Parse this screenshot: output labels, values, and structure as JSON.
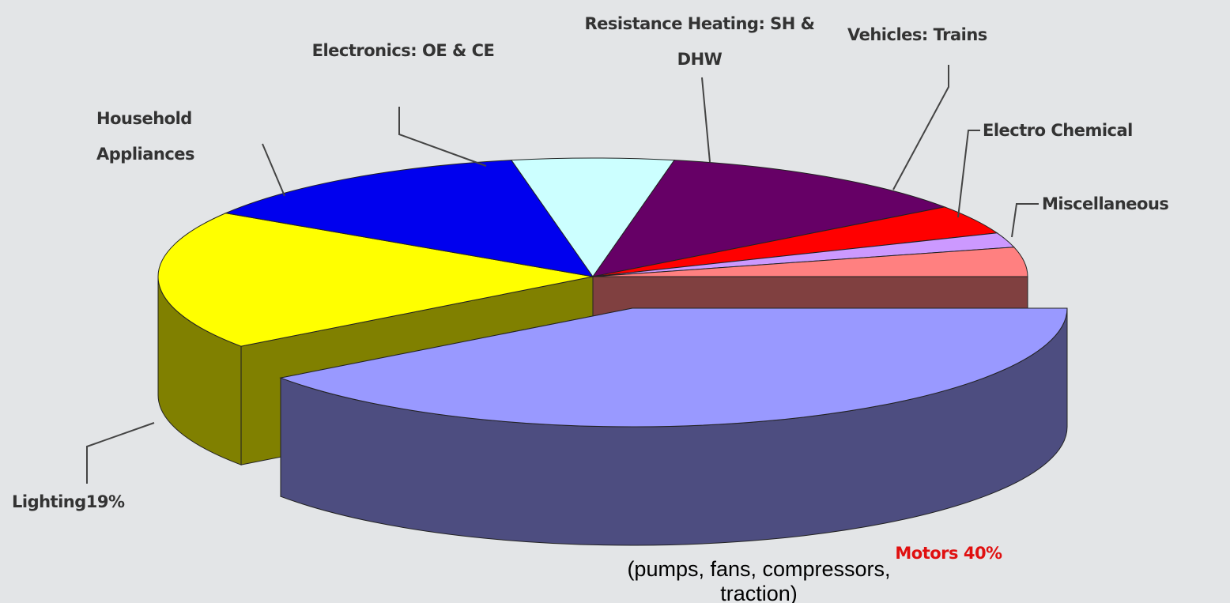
{
  "chart_data": {
    "type": "pie",
    "categories": [
      "Motors 40%",
      "Lighting19%",
      "Household Appliances",
      "Electronics: OE & CE",
      "Resistance Heating: SH & DHW",
      "Vehicles: Trains",
      "Electro Chemical",
      "Miscellaneous"
    ],
    "values": [
      40,
      19,
      13,
      6,
      12,
      4,
      2,
      4
    ],
    "colors": [
      "#9999ff",
      "#ffff00",
      "#0000ee",
      "#ccffff",
      "#660066",
      "#ff0000",
      "#cc99ff",
      "#ff8080"
    ],
    "annotation": "(pumps, fans, compressors, traction)"
  }
}
